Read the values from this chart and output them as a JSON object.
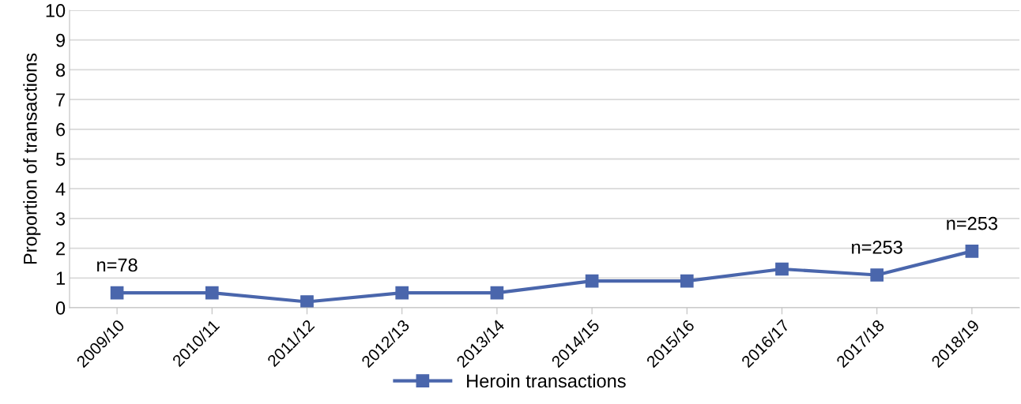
{
  "chart_data": {
    "type": "line",
    "ylabel": "Proportion of transactions",
    "categories": [
      "2009/10",
      "2010/11",
      "2011/12",
      "2012/13",
      "2013/14",
      "2014/15",
      "2015/16",
      "2016/17",
      "2017/18",
      "2018/19"
    ],
    "series": [
      {
        "name": "Heroin transactions",
        "color": "#4a66ac",
        "values": [
          0.5,
          0.5,
          0.2,
          0.5,
          0.5,
          0.9,
          0.9,
          1.3,
          1.1,
          1.9
        ]
      }
    ],
    "ylim": [
      0,
      10
    ],
    "yticks": [
      0,
      1,
      2,
      3,
      4,
      5,
      6,
      7,
      8,
      9,
      10
    ],
    "grid": "y",
    "legend": "bottom",
    "marker": "square",
    "line_style": "solid",
    "annotations": [
      {
        "text": "n=78",
        "x": "2009/10",
        "y": 0.5
      },
      {
        "text": "n=253",
        "x": "2017/18",
        "y": 1.1
      },
      {
        "text": "n=253",
        "x": "2018/19",
        "y": 1.9
      }
    ]
  }
}
